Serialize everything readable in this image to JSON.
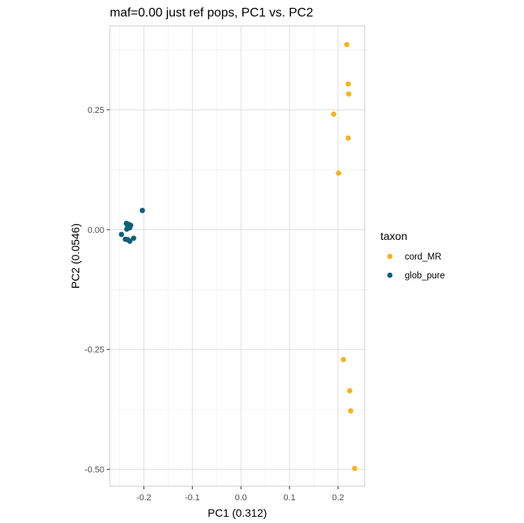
{
  "chart_data": {
    "type": "scatter",
    "title": "maf=0.00 just ref pops, PC1 vs. PC2",
    "xlabel": "PC1 (0.312)",
    "ylabel": "PC2 (0.0546)",
    "xlim": [
      -0.27,
      0.255
    ],
    "ylim": [
      -0.535,
      0.425
    ],
    "x_ticks": [
      -0.2,
      -0.1,
      0.0,
      0.1,
      0.2
    ],
    "x_tick_labels": [
      "-0.2",
      "-0.1",
      "0.0",
      "0.1",
      "0.2"
    ],
    "y_ticks": [
      -0.5,
      -0.25,
      0.0,
      0.25
    ],
    "y_tick_labels": [
      "-0.50",
      "-0.25",
      "0.00",
      "0.25"
    ],
    "grid": true,
    "legend_title": "taxon",
    "legend_position": "right",
    "series": [
      {
        "name": "cord_MR",
        "color": "#F5B420",
        "points": [
          [
            0.218,
            0.386
          ],
          [
            0.221,
            0.304
          ],
          [
            0.222,
            0.283
          ],
          [
            0.191,
            0.241
          ],
          [
            0.221,
            0.191
          ],
          [
            0.201,
            0.118
          ],
          [
            0.211,
            -0.271
          ],
          [
            0.224,
            -0.336
          ],
          [
            0.226,
            -0.378
          ],
          [
            0.234,
            -0.498
          ]
        ]
      },
      {
        "name": "glob_pure",
        "color": "#0D6178",
        "points": [
          [
            -0.203,
            0.04
          ],
          [
            -0.236,
            0.013
          ],
          [
            -0.231,
            0.011
          ],
          [
            -0.227,
            0.009
          ],
          [
            -0.233,
            0.005
          ],
          [
            -0.229,
            0.004
          ],
          [
            -0.235,
            0.001
          ],
          [
            -0.246,
            -0.01
          ],
          [
            -0.221,
            -0.018
          ],
          [
            -0.238,
            -0.02
          ],
          [
            -0.233,
            -0.021
          ],
          [
            -0.229,
            -0.024
          ]
        ]
      }
    ]
  }
}
